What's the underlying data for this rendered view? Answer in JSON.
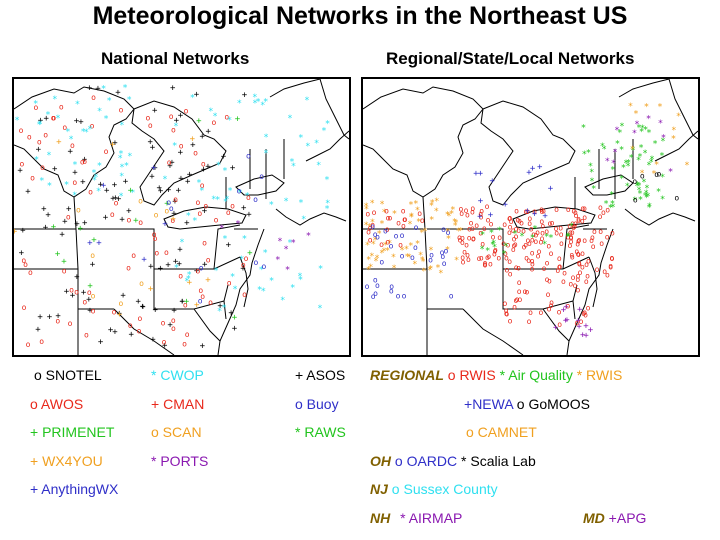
{
  "title": "Meteorological Networks in the Northeast US",
  "left_panel": {
    "title": "National Networks"
  },
  "right_panel": {
    "title": "Regional/State/Local Networks"
  },
  "colors": {
    "black": "#000000",
    "red": "#e8281b",
    "green": "#22c41e",
    "orange": "#f0a020",
    "blue": "#2f2fc8",
    "cyan": "#30e0f0",
    "purple": "#8a18b0",
    "olive": "#806000"
  },
  "national_legend": [
    {
      "symbol": "o",
      "name": "SNOTEL",
      "color": "black"
    },
    {
      "symbol": "*",
      "name": "CWOP",
      "color": "cyan"
    },
    {
      "symbol": "+",
      "name": "ASOS",
      "color": "black"
    },
    {
      "symbol": "o",
      "name": "AWOS",
      "color": "red"
    },
    {
      "symbol": "+",
      "name": "CMAN",
      "color": "red"
    },
    {
      "symbol": "o",
      "name": "Buoy",
      "color": "blue"
    },
    {
      "symbol": "+",
      "name": "PRIMENET",
      "color": "green"
    },
    {
      "symbol": "o",
      "name": "SCAN",
      "color": "orange"
    },
    {
      "symbol": "*",
      "name": "RAWS",
      "color": "green"
    },
    {
      "symbol": "+",
      "name": "WX4YOU",
      "color": "orange"
    },
    {
      "symbol": "*",
      "name": "PORTS",
      "color": "purple"
    },
    {
      "symbol": "+",
      "name": "AnythingWX",
      "color": "blue"
    }
  ],
  "regional_legend": {
    "regional_tag": "REGIONAL",
    "regional_items": [
      {
        "symbol": "o",
        "name": "RWIS",
        "color": "red"
      },
      {
        "symbol": "*",
        "name": "Air Quality",
        "color": "green"
      },
      {
        "symbol": "*",
        "name": "RWIS",
        "color": "orange"
      },
      {
        "symbol": "+",
        "name": "NEWA",
        "color": "blue"
      },
      {
        "symbol": "o",
        "name": "GoMOOS",
        "color": "black"
      },
      {
        "symbol": "o",
        "name": "CAMNET",
        "color": "orange"
      }
    ],
    "oh": {
      "tag": "OH",
      "items": [
        {
          "symbol": "o",
          "name": "OARDC",
          "color": "blue"
        },
        {
          "symbol": "*",
          "name": "Scalia Lab",
          "color": "black"
        }
      ]
    },
    "nj": {
      "tag": "NJ",
      "items": [
        {
          "symbol": "o",
          "name": "Sussex County",
          "color": "cyan"
        }
      ]
    },
    "nh": {
      "tag": "NH",
      "items": [
        {
          "symbol": "*",
          "name": "AIRMAP",
          "color": "purple"
        }
      ]
    },
    "md": {
      "tag": "MD",
      "items": [
        {
          "symbol": "+",
          "name": "APG",
          "color": "purple"
        }
      ]
    }
  }
}
